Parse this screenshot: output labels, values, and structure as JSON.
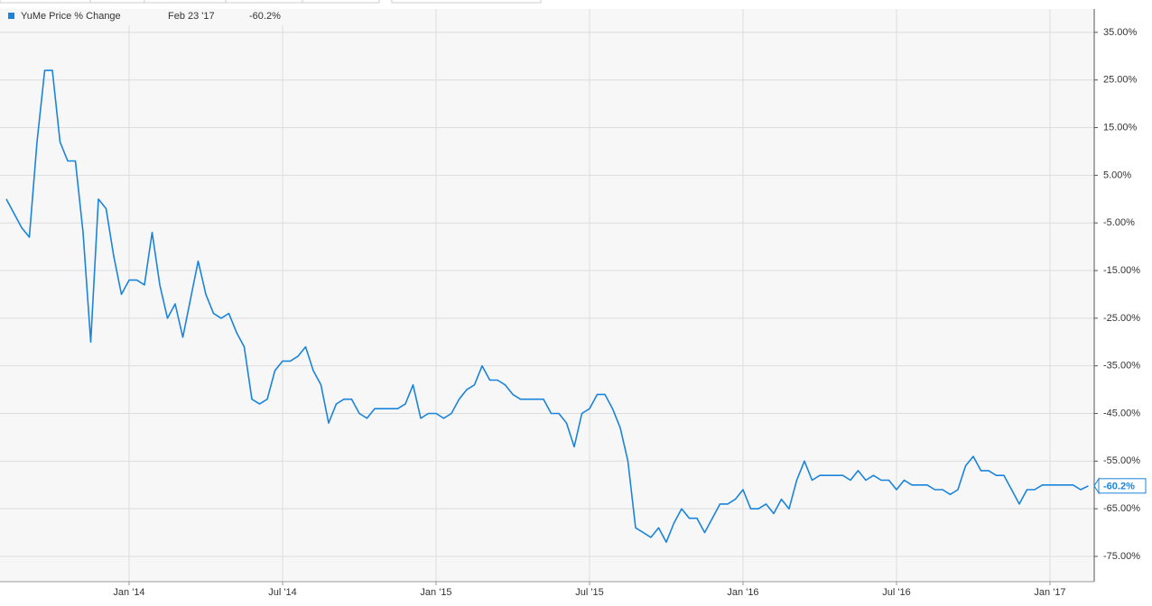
{
  "chart_data": {
    "type": "line",
    "date_label": "Feb 23 '17",
    "categories": [
      null,
      null,
      null,
      null,
      null,
      null,
      null,
      null,
      null,
      null,
      null,
      null,
      null,
      null,
      null,
      null,
      "Jan '14",
      null,
      null,
      null,
      null,
      null,
      null,
      null,
      null,
      null,
      null,
      null,
      null,
      null,
      null,
      null,
      null,
      null,
      null,
      null,
      "Jul '14",
      null,
      null,
      null,
      null,
      null,
      null,
      null,
      null,
      null,
      null,
      null,
      null,
      null,
      null,
      null,
      null,
      null,
      null,
      null,
      "Jan '15",
      null,
      null,
      null,
      null,
      null,
      null,
      null,
      null,
      null,
      null,
      null,
      null,
      null,
      null,
      null,
      null,
      null,
      null,
      null,
      "Jul '15",
      null,
      null,
      null,
      null,
      null,
      null,
      null,
      null,
      null,
      null,
      null,
      null,
      null,
      null,
      null,
      null,
      null,
      null,
      null,
      "Jan '16",
      null,
      null,
      null,
      null,
      null,
      null,
      null,
      null,
      null,
      null,
      null,
      null,
      null,
      null,
      null,
      null,
      null,
      null,
      null,
      "Jul '16",
      null,
      null,
      null,
      null,
      null,
      null,
      null,
      null,
      null,
      null,
      null,
      null,
      null,
      null,
      null,
      null,
      null,
      null,
      null,
      "Jan '17",
      null,
      null,
      null,
      null,
      null
    ],
    "series": [
      {
        "name": "YuMe Price % Change",
        "color": "#1a84dc",
        "last_label": "-60.2%",
        "values": [
          0,
          -3,
          -6,
          -8,
          12,
          27,
          27,
          12,
          8,
          8,
          -7,
          -30,
          0,
          -2,
          -12,
          -20,
          -17,
          -17,
          -18,
          -7,
          -18,
          -25,
          -22,
          -29,
          -21,
          -13,
          -20,
          -24,
          -25,
          -24,
          -28,
          -31,
          -42,
          -43,
          -42,
          -36,
          -34,
          -34,
          -33,
          -31,
          -36,
          -39,
          -47,
          -43,
          -42,
          -42,
          -45,
          -46,
          -44,
          -44,
          -44,
          -44,
          -43,
          -39,
          -46,
          -45,
          -45,
          -46,
          -45,
          -42,
          -40,
          -39,
          -35,
          -38,
          -38,
          -39,
          -41,
          -42,
          -42,
          -42,
          -42,
          -45,
          -45,
          -47,
          -52,
          -45,
          -44,
          -41,
          -41,
          -44,
          -48,
          -55,
          -69,
          -70,
          -71,
          -69,
          -72,
          -68,
          -65,
          -67,
          -67,
          -70,
          -67,
          -64,
          -64,
          -63,
          -61,
          -65,
          -65,
          -64,
          -66,
          -63,
          -65,
          -59,
          -55,
          -59,
          -58,
          -58,
          -58,
          -58,
          -59,
          -57,
          -59,
          -58,
          -59,
          -59,
          -61,
          -59,
          -60,
          -60,
          -60,
          -61,
          -61,
          -62,
          -61,
          -56,
          -54,
          -57,
          -57,
          -58,
          -58,
          -61,
          -64,
          -61,
          -61,
          -60,
          -60,
          -60,
          -60,
          -60,
          -61,
          -60.2
        ]
      }
    ],
    "ylim": [
      -80.3,
      39.9
    ],
    "yticks": [
      {
        "value": 35,
        "label": "35.00%"
      },
      {
        "value": 25,
        "label": "25.00%"
      },
      {
        "value": 15,
        "label": "15.00%"
      },
      {
        "value": 5,
        "label": "5.00%"
      },
      {
        "value": -5,
        "label": "-5.00%"
      },
      {
        "value": -15,
        "label": "-15.00%"
      },
      {
        "value": -25,
        "label": "-25.00%"
      },
      {
        "value": -35,
        "label": "-35.00%"
      },
      {
        "value": -45,
        "label": "-45.00%"
      },
      {
        "value": -55,
        "label": "-55.00%"
      },
      {
        "value": -65,
        "label": "-65.00%"
      },
      {
        "value": -75,
        "label": "-75.00%"
      }
    ],
    "grid": true
  }
}
